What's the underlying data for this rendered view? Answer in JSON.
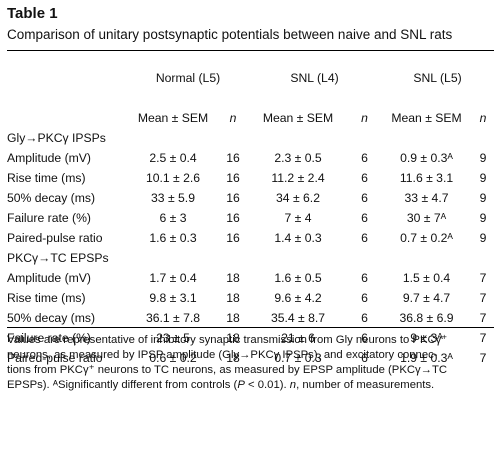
{
  "title": "Table 1",
  "subtitle": "Comparison of unitary postsynaptic potentials between naive and SNL rats",
  "groups": [
    "Normal (L5)",
    "SNL (L4)",
    "SNL (L5)"
  ],
  "subheaders": {
    "mean": "Mean ± SEM",
    "n": "n"
  },
  "sections": [
    {
      "heading": "Gly→PKCγ IPSPs",
      "rows": [
        {
          "label": "Amplitude (mV)",
          "v": [
            "2.5 ± 0.4",
            "16",
            "2.3 ± 0.5",
            "6",
            "0.9 ± 0.3ᴬ",
            "9"
          ]
        },
        {
          "label": "Rise time (ms)",
          "v": [
            "10.1 ± 2.6",
            "16",
            "11.2 ± 2.4",
            "6",
            "11.6 ± 3.1",
            "9"
          ]
        },
        {
          "label": "50% decay (ms)",
          "v": [
            "33 ± 5.9",
            "16",
            "34 ± 6.2",
            "6",
            "33 ± 4.7",
            "9"
          ]
        },
        {
          "label": "Failure rate (%)",
          "v": [
            "6 ± 3",
            "16",
            "7 ± 4",
            "6",
            "30 ± 7ᴬ",
            "9"
          ]
        },
        {
          "label": "Paired-pulse ratio",
          "v": [
            "1.6 ± 0.3",
            "16",
            "1.4 ± 0.3",
            "6",
            "0.7 ± 0.2ᴬ",
            "9"
          ]
        }
      ]
    },
    {
      "heading": "PKCγ→TC EPSPs",
      "rows": [
        {
          "label": "Amplitude (mV)",
          "v": [
            "1.7 ± 0.4",
            "18",
            "1.6 ± 0.5",
            "6",
            "1.5 ± 0.4",
            "7"
          ]
        },
        {
          "label": "Rise time (ms)",
          "v": [
            "9.8 ± 3.1",
            "18",
            "9.6 ± 4.2",
            "6",
            "9.7 ± 4.7",
            "7"
          ]
        },
        {
          "label": "50% decay (ms)",
          "v": [
            "36.1 ± 7.8",
            "18",
            "35.4 ± 8.7",
            "6",
            "36.8 ± 6.9",
            "7"
          ]
        },
        {
          "label": "Failure rate (%)",
          "v": [
            "23 ± 5",
            "18",
            "21 ± 6",
            "6",
            "9 ± 3ᴬ",
            "7"
          ]
        },
        {
          "label": "Paired-pulse ratio",
          "v": [
            "0.6 ± 0.2",
            "18",
            "0.7 ± 0.3",
            "6",
            "1.9 ± 0.3ᴬ",
            "7"
          ]
        }
      ]
    }
  ],
  "footnote": {
    "line1": "Values are representative of inhibitory synaptic transmission from Gly neurons to PKCγ⁺",
    "line2": "neurons, as measured by IPSP amplitude (Gly→PKCγ IPSPs), and excitatory connec-",
    "line3": "tions from PKCγ⁺ neurons to TC neurons, as measured by EPSP amplitude (PKCγ→TC",
    "line4a": "EPSPs). ᴬSignificantly different from controls (",
    "p_sym": "P",
    "line4b": " < 0.01). ",
    "n_sym": "n",
    "line4c": ", number of measurements."
  }
}
